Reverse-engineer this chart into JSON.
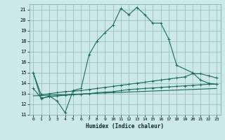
{
  "xlabel": "Humidex (Indice chaleur)",
  "bg_color": "#cce8e8",
  "grid_color": "#9dbfbf",
  "line_color": "#1a6b5a",
  "xlim": [
    -0.5,
    23.5
  ],
  "ylim": [
    11,
    21.5
  ],
  "yticks": [
    11,
    12,
    13,
    14,
    15,
    16,
    17,
    18,
    19,
    20,
    21
  ],
  "xticks": [
    0,
    1,
    2,
    3,
    4,
    5,
    6,
    7,
    8,
    9,
    10,
    11,
    12,
    13,
    14,
    15,
    16,
    17,
    18,
    19,
    20,
    21,
    22,
    23
  ],
  "curve1_x": [
    0,
    1,
    2,
    3,
    4,
    5,
    6,
    7,
    8,
    9,
    10,
    11,
    12,
    13,
    14,
    15,
    16,
    17,
    18,
    20,
    21,
    22,
    23
  ],
  "curve1_y": [
    15.0,
    12.5,
    12.8,
    12.3,
    11.2,
    13.3,
    13.5,
    16.7,
    18.0,
    18.8,
    19.5,
    21.1,
    20.5,
    21.2,
    20.5,
    19.7,
    19.7,
    18.2,
    15.7,
    15.0,
    14.3,
    14.0,
    13.9
  ],
  "curve2_x": [
    0,
    1,
    2,
    3,
    4,
    5,
    6,
    7,
    8,
    9,
    10,
    11,
    12,
    13,
    14,
    15,
    16,
    17,
    18,
    19,
    20,
    21,
    22,
    23
  ],
  "curve2_y": [
    15.0,
    12.9,
    13.0,
    13.1,
    13.2,
    13.25,
    13.3,
    13.4,
    13.5,
    13.6,
    13.7,
    13.8,
    13.9,
    14.0,
    14.1,
    14.2,
    14.3,
    14.4,
    14.5,
    14.6,
    14.9,
    14.9,
    14.7,
    14.5
  ],
  "curve3_x": [
    0,
    1,
    2,
    3,
    4,
    5,
    6,
    7,
    8,
    9,
    10,
    11,
    12,
    13,
    14,
    15,
    16,
    17,
    18,
    19,
    20,
    21,
    22,
    23
  ],
  "curve3_y": [
    13.5,
    12.6,
    12.7,
    12.8,
    12.85,
    12.9,
    12.95,
    13.0,
    13.1,
    13.15,
    13.2,
    13.3,
    13.4,
    13.45,
    13.5,
    13.55,
    13.6,
    13.65,
    13.7,
    13.75,
    13.8,
    13.85,
    13.9,
    13.9
  ],
  "curve4_x": [
    0,
    23
  ],
  "curve4_y": [
    12.8,
    13.5
  ]
}
